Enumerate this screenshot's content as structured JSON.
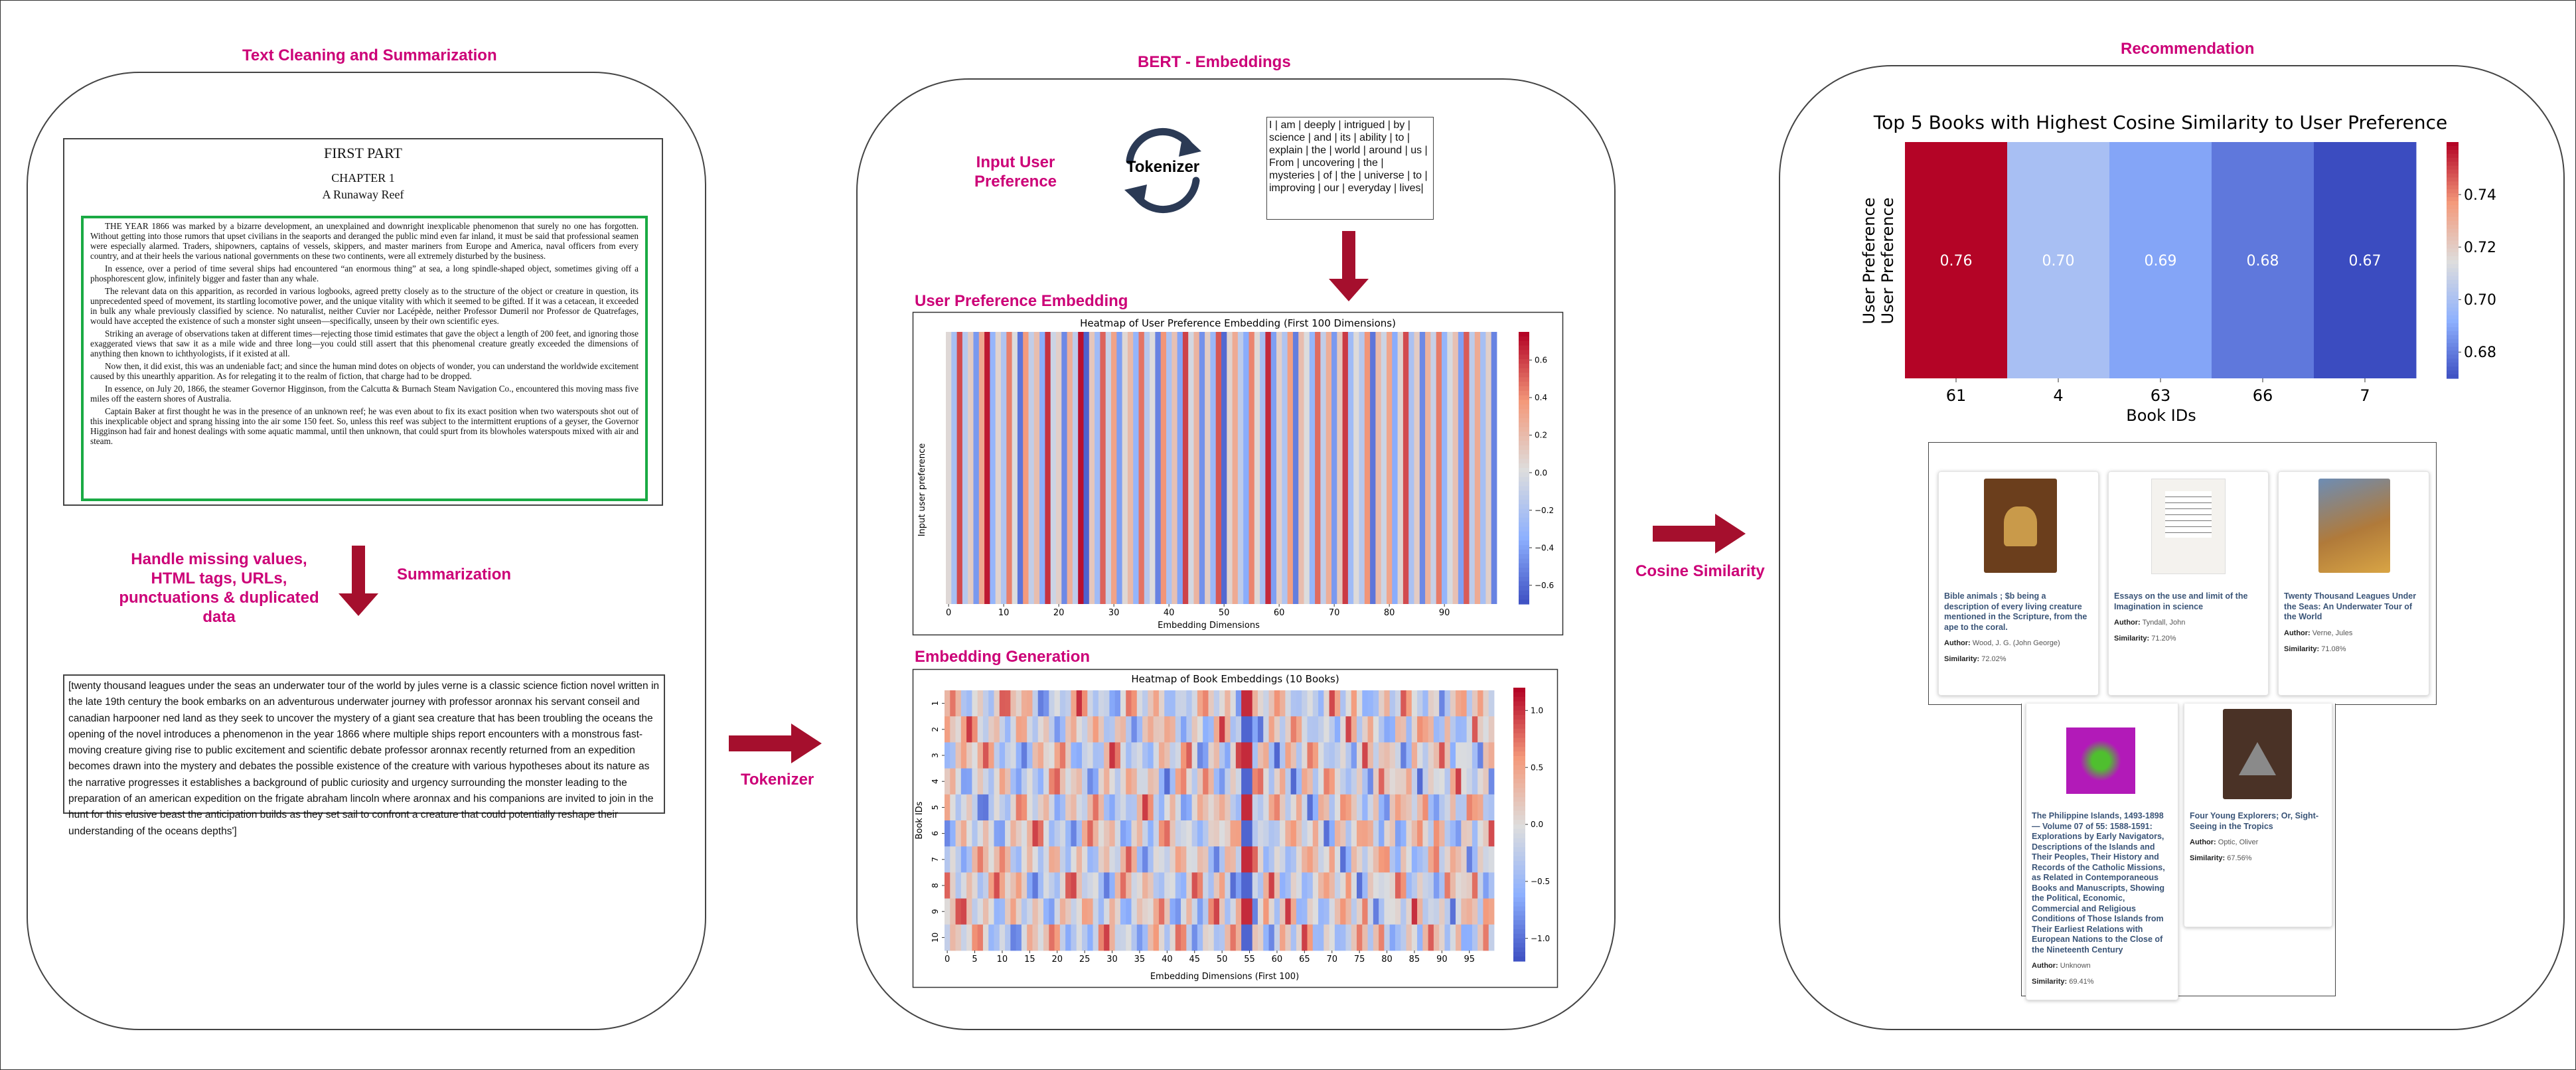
{
  "sections": {
    "cleaning": "Text Cleaning and Summarization",
    "bert": "BERT - Embeddings",
    "recommendation": "Recommendation"
  },
  "doc": {
    "part": "FIRST PART",
    "chapter": "CHAPTER 1",
    "chapter_title": "A Runaway Reef",
    "paragraphs": [
      "THE YEAR 1866 was marked by a bizarre development, an unexplained and downright inexplicable phenomenon that surely no one has forgotten. Without getting into those rumors that upset civilians in the seaports and deranged the public mind even far inland, it must be said that professional seamen were especially alarmed. Traders, shipowners, captains of vessels, skippers, and master mariners from Europe and America, naval officers from every country, and at their heels the various national governments on these two continents, were all extremely disturbed by the business.",
      "In essence, over a period of time several ships had encountered “an enormous thing” at sea, a long spindle-shaped object, sometimes giving off a phosphorescent glow, infinitely bigger and faster than any whale.",
      "The relevant data on this apparition, as recorded in various logbooks, agreed pretty closely as to the structure of the object or creature in question, its unprecedented speed of movement, its startling locomotive power, and the unique vitality with which it seemed to be gifted. If it was a cetacean, it exceeded in bulk any whale previously classified by science. No naturalist, neither Cuvier nor Lacépède, neither Professor Dumeril nor Professor de Quatrefages, would have accepted the existence of such a monster sight unseen—specifically, unseen by their own scientific eyes.",
      "Striking an average of observations taken at different times—rejecting those timid estimates that gave the object a length of 200 feet, and ignoring those exaggerated views that saw it as a mile wide and three long—you could still assert that this phenomenal creature greatly exceeded the dimensions of anything then known to ichthyologists, if it existed at all.",
      "Now then, it did exist, this was an undeniable fact; and since the human mind dotes on objects of wonder, you can understand the worldwide excitement caused by this unearthly apparition. As for relegating it to the realm of fiction, that charge had to be dropped.",
      "In essence, on July 20, 1866, the steamer Governor Higginson, from the Calcutta & Burnach Steam Navigation Co., encountered this moving mass five miles off the eastern shores of Australia.",
      "Captain Baker at first thought he was in the presence of an unknown reef; he was even about to fix its exact position when two waterspouts shot out of this inexplicable object and sprang hissing into the air some 150 feet. So, unless this reef was subject to the intermittent eruptions of a geyser, the Governor Higginson had fair and honest dealings with some aquatic mammal, until then unknown, that could spurt from its blowholes waterspouts mixed with air and steam."
    ]
  },
  "labels": {
    "cleaning_steps": "Handle missing values, HTML tags, URLs, punctuations & duplicated data",
    "summarization": "Summarization",
    "tokenizer_arrow": "Tokenizer",
    "tokenizer_icon": "Tokenizer",
    "input_pref": "Input User Preference",
    "user_pref_embedding": "User Preference Embedding",
    "embedding_generation": "Embedding Generation",
    "cosine": "Cosine Similarity"
  },
  "summary_text": "[twenty thousand leagues under the seas an underwater tour of the world by jules verne is a classic science fiction novel written in the late 19th century the book embarks on an adventurous underwater journey with professor aronnax his servant conseil and canadian harpooner ned land as they seek to uncover the mystery of a giant sea creature that has been troubling the oceans the opening of the novel introduces a phenomenon in the year 1866 where multiple ships report encounters with a monstrous fast-moving creature giving rise to public excitement and scientific debate professor aronnax recently returned from an expedition becomes drawn into the mystery and debates the possible existence of the creature with various hypotheses about its nature as the narrative progresses it establishes a background of public curiosity and urgency surrounding the monster leading to the preparation of an american expedition on the frigate abraham lincoln where aronnax and his companions are invited to join in the hunt for this elusive beast the anticipation builds as they set sail to confront a creature that could potentially reshape their understanding of the oceans depths']",
  "tokens_text": "I | am | deeply | intrigued | by | science | and | its | ability | to | explain | the | world | around | us | From | uncovering | the | mysteries | of | the | universe | to | improving | our | everyday | lives|",
  "chart_data": [
    {
      "type": "heatmap",
      "title": "Heatmap of User Preference Embedding (First 100 Dimensions)",
      "xlabel": "Embedding Dimensions",
      "ylabel": "Input user preference",
      "xticks": [
        0,
        10,
        20,
        30,
        40,
        50,
        60,
        70,
        80,
        90
      ],
      "colorbar_ticks": [
        0.6,
        0.4,
        0.2,
        0.0,
        -0.2,
        -0.4,
        -0.6
      ],
      "colorbar_labels": [
        "0.6",
        "0.4",
        "0.2",
        "0.0",
        "−0.2",
        "−0.4",
        "−0.6"
      ],
      "vmin": -0.7,
      "vmax": 0.75,
      "colormap": "coolwarm",
      "values": [
        0.05,
        -0.22,
        0.58,
        -0.15,
        0.12,
        -0.42,
        0.31,
        0.7,
        -0.3,
        0.08,
        -0.18,
        0.45,
        0.02,
        -0.55,
        0.38,
        -0.1,
        0.2,
        -0.35,
        0.64,
        -0.05,
        0.1,
        -0.48,
        0.28,
        -0.12,
        0.72,
        -0.62,
        0.15,
        -0.25,
        0.52,
        -0.08,
        0.34,
        -0.4,
        0.06,
        0.22,
        -0.3,
        0.48,
        -0.15,
        0.03,
        -0.5,
        0.4,
        -0.2,
        0.18,
        -0.38,
        0.6,
        -0.02,
        0.25,
        -0.45,
        0.12,
        -0.28,
        0.55,
        -0.6,
        0.08,
        0.3,
        -0.12,
        -0.35,
        0.44,
        0.05,
        -0.22,
        0.66,
        -0.4,
        0.1,
        -0.18,
        0.36,
        -0.52,
        0.2,
        0.02,
        -0.3,
        0.5,
        -0.1,
        0.28,
        -0.42,
        0.14,
        0.62,
        -0.25,
        0.04,
        -0.15,
        0.4,
        -0.55,
        0.22,
        -0.05,
        0.32,
        -0.35,
        0.08,
        0.58,
        -0.2,
        0.12,
        -0.48,
        0.26,
        -0.08,
        0.46,
        -0.3,
        0.0,
        0.18,
        -0.4,
        0.54,
        -0.12,
        0.3,
        -0.22,
        0.1,
        -0.5
      ],
      "n_dims": 100
    },
    {
      "type": "heatmap",
      "title": "Heatmap of Book Embeddings (10 Books)",
      "xlabel": "Embedding Dimensions (First 100)",
      "ylabel": "Book IDs",
      "yticks": [
        "1",
        "2",
        "3",
        "4",
        "5",
        "6",
        "7",
        "8",
        "9",
        "10"
      ],
      "xticks": [
        0,
        5,
        10,
        15,
        20,
        25,
        30,
        35,
        40,
        45,
        50,
        55,
        60,
        65,
        70,
        75,
        80,
        85,
        90,
        95
      ],
      "colorbar_ticks": [
        1.0,
        0.5,
        0.0,
        -0.5,
        -1.0
      ],
      "colorbar_labels": [
        "1.0",
        "0.5",
        "0.0",
        "−0.5",
        "−1.0"
      ],
      "vmin": -1.2,
      "vmax": 1.2,
      "colormap": "coolwarm",
      "rows": 10,
      "n_dims": 100
    },
    {
      "type": "heatmap",
      "title": "Top 5 Books with Highest Cosine Similarity to User Preference",
      "xlabel": "Book IDs",
      "ylabel": "User Preference",
      "categories": [
        "61",
        "4",
        "63",
        "66",
        "7"
      ],
      "values": [
        0.76,
        0.7,
        0.69,
        0.68,
        0.67
      ],
      "value_labels": [
        "0.76",
        "0.70",
        "0.69",
        "0.68",
        "0.67"
      ],
      "colorbar_ticks": [
        0.74,
        0.72,
        0.7,
        0.68
      ],
      "colorbar_labels": [
        "0.74",
        "0.72",
        "0.70",
        "0.68"
      ],
      "vmin": 0.67,
      "vmax": 0.76,
      "colormap": "coolwarm"
    }
  ],
  "books": [
    {
      "title": "Bible animals ; $b being a description of every living creature mentioned in the Scripture, from the ape to the coral.",
      "author_label": "Author:",
      "author": "Wood, J. G. (John George)",
      "similarity_label": "Similarity:",
      "similarity": "72.02%",
      "cover_color": "#6b3e1c"
    },
    {
      "title": "Essays on the use and limit of the Imagination in science",
      "author_label": "Author:",
      "author": "Tyndall, John",
      "similarity_label": "Similarity:",
      "similarity": "71.20%",
      "cover_color": "#f4f2ee"
    },
    {
      "title": "Twenty Thousand Leagues Under the Seas: An Underwater Tour of the World",
      "author_label": "Author:",
      "author": "Verne, Jules",
      "similarity_label": "Similarity:",
      "similarity": "71.08%",
      "cover_color": "#b07a3a"
    },
    {
      "title": "The Philippine Islands, 1493-1898 — Volume 07 of 55: 1588-1591: Explorations by Early Navigators, Descriptions of the Islands and Their Peoples, Their History and Records of the Catholic Missions, as Related in Contemporaneous Books and Manuscripts, Showing the Political, Economic, Commercial and Religious Conditions of Those Islands from Their Earliest Relations with European Nations to the Close of the Nineteenth Century",
      "author_label": "Author:",
      "author": "Unknown",
      "similarity_label": "Similarity:",
      "similarity": "69.41%",
      "cover_color": "#b21ab8"
    },
    {
      "title": "Four Young Explorers; Or, Sight-Seeing in the Tropics",
      "author_label": "Author:",
      "author": "Optic, Oliver",
      "similarity_label": "Similarity:",
      "similarity": "67.56%",
      "cover_color": "#4a3226"
    }
  ],
  "colors": {
    "accent": "#cc0077",
    "arrow": "#a50f2d",
    "doc_highlight": "#1aaa44",
    "tokenizer_icon": "#2b3a55"
  }
}
